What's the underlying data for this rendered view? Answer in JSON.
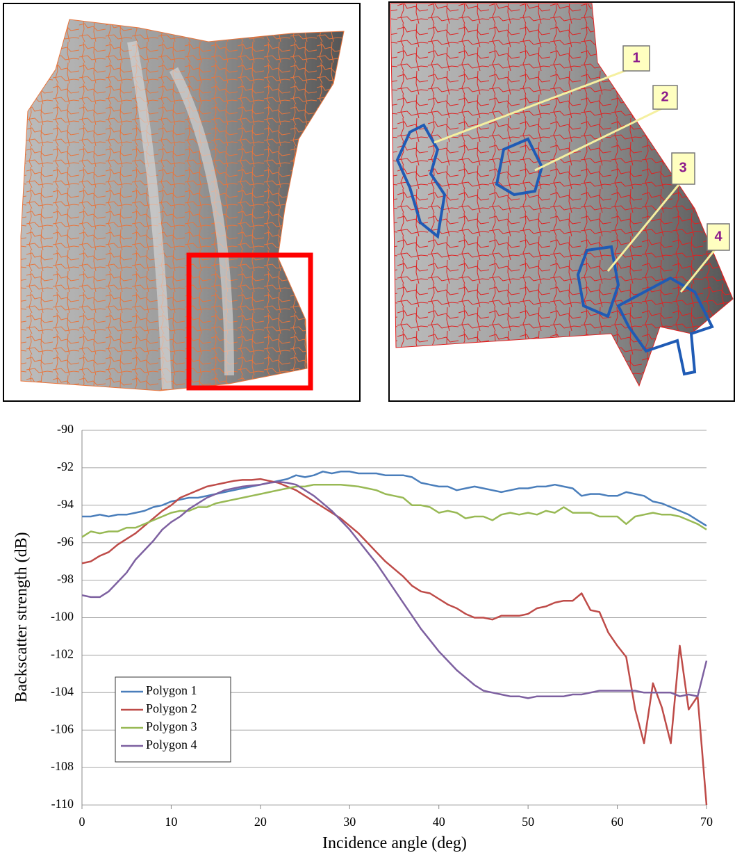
{
  "map_panel": {
    "callouts": [
      "1",
      "2",
      "3",
      "4"
    ]
  },
  "chart_data": {
    "type": "line",
    "xlabel": "Incidence angle (deg)",
    "ylabel": "Backscatter strength (dB)",
    "x": [
      0,
      1,
      2,
      3,
      4,
      5,
      6,
      7,
      8,
      9,
      10,
      11,
      12,
      13,
      14,
      15,
      16,
      17,
      18,
      19,
      20,
      21,
      22,
      23,
      24,
      25,
      26,
      27,
      28,
      29,
      30,
      31,
      32,
      33,
      34,
      35,
      36,
      37,
      38,
      39,
      40,
      41,
      42,
      43,
      44,
      45,
      46,
      47,
      48,
      49,
      50,
      51,
      52,
      53,
      54,
      55,
      56,
      57,
      58,
      59,
      60,
      61,
      62,
      63,
      64,
      65,
      66,
      67,
      68,
      69,
      70
    ],
    "xlim": [
      0,
      70
    ],
    "xticks": [
      0,
      10,
      20,
      30,
      40,
      50,
      60,
      70
    ],
    "ylim": [
      -110,
      -90
    ],
    "yticks": [
      -110,
      -108,
      -106,
      -104,
      -102,
      -100,
      -98,
      -96,
      -94,
      -92,
      -90
    ],
    "grid": true,
    "legend": "lower left",
    "series": [
      {
        "name": "Polygon 1",
        "color": "#4a7ebb",
        "values": [
          -94.6,
          -94.6,
          -94.5,
          -94.6,
          -94.5,
          -94.5,
          -94.4,
          -94.3,
          -94.1,
          -94.0,
          -93.8,
          -93.7,
          -93.6,
          -93.6,
          -93.5,
          -93.4,
          -93.3,
          -93.2,
          -93.1,
          -93.0,
          -92.9,
          -92.8,
          -92.7,
          -92.6,
          -92.4,
          -92.5,
          -92.4,
          -92.2,
          -92.3,
          -92.2,
          -92.2,
          -92.3,
          -92.3,
          -92.3,
          -92.4,
          -92.4,
          -92.4,
          -92.5,
          -92.8,
          -92.9,
          -93.0,
          -93.0,
          -93.2,
          -93.1,
          -93.0,
          -93.1,
          -93.2,
          -93.3,
          -93.2,
          -93.1,
          -93.1,
          -93.0,
          -93.0,
          -92.9,
          -93.0,
          -93.1,
          -93.5,
          -93.4,
          -93.4,
          -93.5,
          -93.5,
          -93.3,
          -93.4,
          -93.5,
          -93.8,
          -93.9,
          -94.1,
          -94.3,
          -94.5,
          -94.8,
          -95.1
        ]
      },
      {
        "name": "Polygon 2",
        "color": "#be4b48",
        "values": [
          -97.1,
          -97.0,
          -96.7,
          -96.5,
          -96.1,
          -95.8,
          -95.5,
          -95.1,
          -94.7,
          -94.3,
          -94.0,
          -93.6,
          -93.4,
          -93.2,
          -93.0,
          -92.9,
          -92.8,
          -92.7,
          -92.65,
          -92.65,
          -92.6,
          -92.7,
          -92.8,
          -93.0,
          -93.2,
          -93.5,
          -93.8,
          -94.1,
          -94.4,
          -94.7,
          -95.1,
          -95.5,
          -96.0,
          -96.5,
          -97.0,
          -97.4,
          -97.8,
          -98.3,
          -98.6,
          -98.7,
          -99.0,
          -99.3,
          -99.5,
          -99.8,
          -100.0,
          -100.0,
          -100.1,
          -99.9,
          -99.9,
          -99.9,
          -99.8,
          -99.5,
          -99.4,
          -99.2,
          -99.1,
          -99.1,
          -98.7,
          -99.6,
          -99.7,
          -100.8,
          -101.5,
          -102.1,
          -104.9,
          -106.7,
          -103.5,
          -104.8,
          -106.7,
          -101.5,
          -104.9,
          -104.2,
          -110
        ]
      },
      {
        "name": "Polygon 3",
        "color": "#98b954",
        "values": [
          -95.7,
          -95.4,
          -95.5,
          -95.4,
          -95.4,
          -95.2,
          -95.2,
          -95.0,
          -94.8,
          -94.6,
          -94.4,
          -94.3,
          -94.3,
          -94.1,
          -94.1,
          -93.9,
          -93.8,
          -93.7,
          -93.6,
          -93.5,
          -93.4,
          -93.3,
          -93.2,
          -93.1,
          -93.0,
          -93.0,
          -92.9,
          -92.9,
          -92.9,
          -92.9,
          -92.95,
          -93.0,
          -93.1,
          -93.2,
          -93.4,
          -93.5,
          -93.6,
          -94.0,
          -94.0,
          -94.1,
          -94.4,
          -94.3,
          -94.4,
          -94.7,
          -94.6,
          -94.6,
          -94.8,
          -94.5,
          -94.4,
          -94.5,
          -94.4,
          -94.5,
          -94.3,
          -94.4,
          -94.1,
          -94.4,
          -94.4,
          -94.4,
          -94.6,
          -94.6,
          -94.6,
          -95.0,
          -94.6,
          -94.5,
          -94.4,
          -94.5,
          -94.5,
          -94.6,
          -94.8,
          -95.0,
          -95.3
        ]
      },
      {
        "name": "Polygon 4",
        "color": "#7d60a0",
        "values": [
          -98.8,
          -98.9,
          -98.9,
          -98.6,
          -98.1,
          -97.6,
          -96.9,
          -96.4,
          -95.9,
          -95.3,
          -94.9,
          -94.6,
          -94.2,
          -93.9,
          -93.6,
          -93.4,
          -93.2,
          -93.1,
          -93.0,
          -92.95,
          -92.9,
          -92.8,
          -92.75,
          -92.8,
          -92.9,
          -93.2,
          -93.5,
          -93.9,
          -94.3,
          -94.8,
          -95.3,
          -95.9,
          -96.5,
          -97.1,
          -97.8,
          -98.5,
          -99.2,
          -99.9,
          -100.6,
          -101.2,
          -101.8,
          -102.3,
          -102.8,
          -103.2,
          -103.6,
          -103.9,
          -104.0,
          -104.1,
          -104.2,
          -104.2,
          -104.3,
          -104.2,
          -104.2,
          -104.2,
          -104.2,
          -104.1,
          -104.1,
          -104.0,
          -103.9,
          -103.9,
          -103.9,
          -103.9,
          -103.9,
          -104.0,
          -104.0,
          -104.0,
          -104.0,
          -104.2,
          -104.1,
          -104.2,
          -102.3
        ]
      }
    ]
  }
}
